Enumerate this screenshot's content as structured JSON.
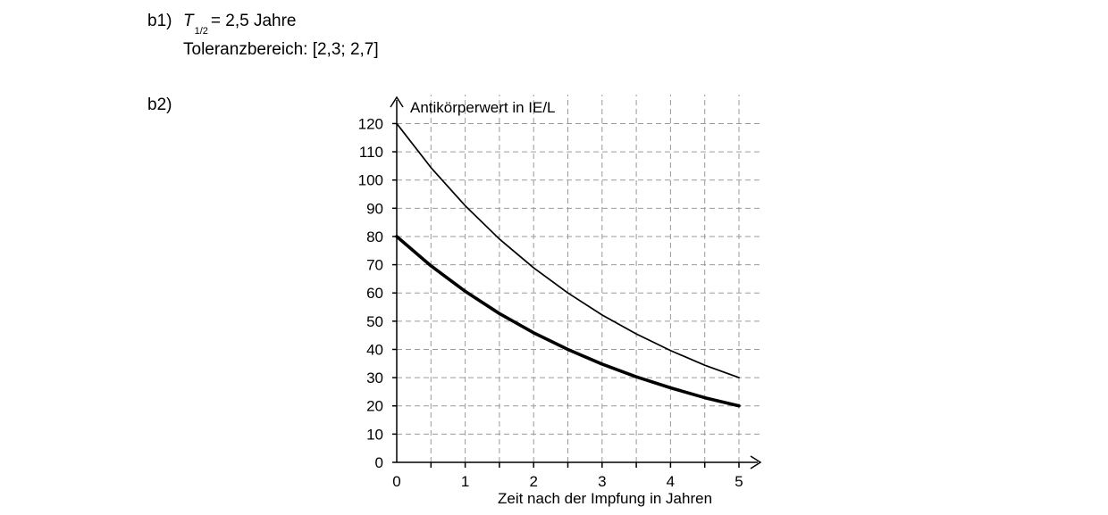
{
  "b1": {
    "label": "b1)",
    "t_symbol": "T",
    "t_subscript": "1/2",
    "t_value": "= 2,5 Jahre",
    "tolerance": "Toleranzbereich: [2,3; 2,7]"
  },
  "b2": {
    "label": "b2)"
  },
  "chart_data": {
    "type": "line",
    "title": "",
    "xlabel": "Zeit nach der Impfung in Jahren",
    "ylabel": "Antikörperwert in IE/L",
    "xlim": [
      0,
      5
    ],
    "ylim": [
      0,
      120
    ],
    "x_ticks": [
      0,
      1,
      2,
      3,
      4,
      5
    ],
    "x_minor_step": 0.5,
    "y_ticks": [
      0,
      10,
      20,
      30,
      40,
      50,
      60,
      70,
      80,
      90,
      100,
      110,
      120
    ],
    "grid": true,
    "legend": "none",
    "series": [
      {
        "style": "thin",
        "x": [
          0,
          0.5,
          1,
          1.5,
          2,
          2.5,
          3,
          3.5,
          4,
          4.5,
          5
        ],
        "values": [
          120,
          104.4,
          90.9,
          79.1,
          68.9,
          60,
          52.2,
          45.5,
          39.6,
          34.4,
          30
        ]
      },
      {
        "style": "thick",
        "x": [
          0,
          0.5,
          1,
          1.5,
          2,
          2.5,
          3,
          3.5,
          4,
          4.5,
          5
        ],
        "values": [
          80,
          69.6,
          60.6,
          52.7,
          45.9,
          40,
          34.8,
          30.3,
          26.4,
          22.9,
          20
        ]
      }
    ]
  }
}
